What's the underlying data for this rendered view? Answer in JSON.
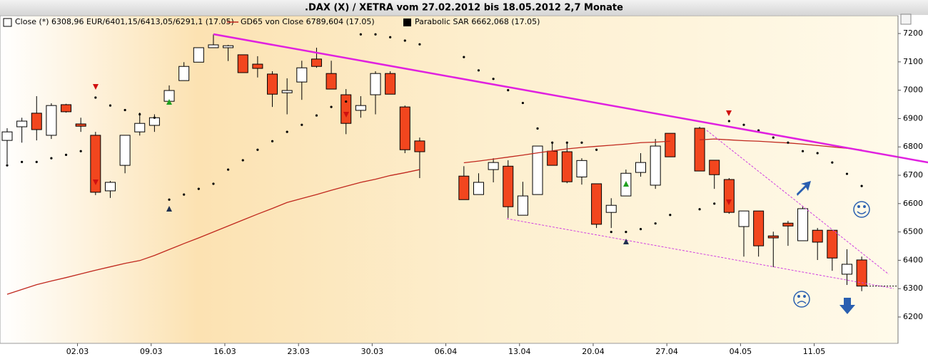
{
  "chart_data": {
    "type": "candlestick",
    "title": ".DAX (X) / XETRA vom 27.02.2012 bis 18.05.2012 2,7 Monate",
    "categories": [
      null,
      null,
      null,
      null,
      "02.03",
      null,
      null,
      null,
      null,
      "09.03",
      null,
      null,
      null,
      null,
      "16.03",
      null,
      null,
      null,
      null,
      "23.03",
      null,
      null,
      null,
      null,
      "30.03",
      null,
      null,
      null,
      null,
      "06.04",
      null,
      null,
      null,
      null,
      "13.04",
      null,
      null,
      null,
      null,
      "20.04",
      null,
      null,
      null,
      null,
      "27.04",
      null,
      null,
      null,
      null,
      "04.05",
      null,
      null,
      null,
      null,
      "11.05",
      null,
      null,
      null,
      null
    ],
    "ylim": [
      6107,
      7263
    ],
    "yticks": [
      6200,
      6300,
      6400,
      6500,
      6600,
      6700,
      6800,
      6900,
      7000,
      7100,
      7200
    ],
    "series": [
      {
        "type": "candlestick",
        "name": "Close (*) 6308,96 EUR/6401,15/6413,05/6291,1 (17.05)",
        "up_color": "#ffffff",
        "down_color": "#f2461e",
        "open": [
          6823,
          6871,
          6919,
          6841,
          6949,
          6881,
          6841,
          6645,
          6735,
          6853,
          6876,
          6961,
          7034,
          7099,
          7150,
          7150,
          7125,
          7092,
          7057,
          6991,
          7029,
          7110,
          7059,
          6984,
          6929,
          6984,
          7059,
          6941,
          6821,
          null,
          null,
          6697,
          6632,
          6720,
          6732,
          6559,
          6632,
          6785,
          6783,
          6694,
          6670,
          6569,
          6627,
          6710,
          6665,
          6848,
          null,
          6866,
          6753,
          6685,
          6519,
          6574,
          6486,
          6531,
          6469,
          6506,
          6506,
          6351,
          6401.15
        ],
        "high": [
          6866,
          6903,
          6979,
          6954,
          6952,
          6903,
          6853,
          6680,
          6841,
          6921,
          6915,
          7017,
          7099,
          7150,
          7197,
          7160,
          7125,
          7120,
          7067,
          7042,
          7104,
          7150,
          7104,
          7004,
          6979,
          7067,
          7067,
          6946,
          6833,
          null,
          null,
          6732,
          6707,
          6760,
          6753,
          6677,
          6803,
          6815,
          6815,
          6760,
          6670,
          6619,
          6720,
          6778,
          6828,
          6848,
          null,
          6871,
          6753,
          6690,
          6574,
          6574,
          6501,
          6539,
          6589,
          6514,
          6506,
          6439,
          6413.05
        ],
        "low": [
          6740,
          6815,
          6823,
          6828,
          6921,
          6853,
          6630,
          6620,
          6707,
          6840,
          6853,
          6950,
          7034,
          7099,
          7150,
          7103,
          7062,
          7045,
          6941,
          6915,
          6966,
          7079,
          7004,
          6845,
          6903,
          6915,
          6986,
          6778,
          6690,
          null,
          null,
          6614,
          6632,
          6675,
          6549,
          6559,
          6632,
          6735,
          6672,
          6667,
          6514,
          6514,
          6627,
          6695,
          6652,
          6765,
          null,
          6715,
          6652,
          6564,
          6413,
          6413,
          6376,
          6451,
          6469,
          6401,
          6363,
          6313,
          6291.1
        ],
        "close": [
          6853,
          6891,
          6861,
          6946,
          6924,
          6873,
          6640,
          6675,
          6841,
          6883,
          6903,
          6999,
          7084,
          7150,
          7160,
          7157,
          7062,
          7077,
          6986,
          6999,
          7079,
          7084,
          7004,
          6883,
          6946,
          7059,
          6986,
          6790,
          6783,
          null,
          null,
          6614,
          6675,
          6745,
          6589,
          6627,
          6803,
          6735,
          6677,
          6752,
          6527,
          6594,
          6707,
          6745,
          6803,
          6765,
          null,
          6715,
          6702,
          6569,
          6574,
          6451,
          6479,
          6521,
          6582,
          6464,
          6408,
          6386,
          6308.96
        ]
      },
      {
        "type": "line",
        "name": "GD65 von Close 6789,604 (17.05)",
        "color": "#c0281e",
        "values": [
          6280,
          6297,
          6314,
          6327,
          6339,
          6352,
          6365,
          6377,
          6389,
          6399,
          6417,
          6438,
          6459,
          6479,
          6500,
          6521,
          6542,
          6563,
          6583,
          6604,
          6618,
          6632,
          6647,
          6661,
          6675,
          6686,
          6699,
          6709,
          6720,
          null,
          null,
          6744,
          6750,
          6757,
          6764,
          6771,
          6779,
          6786,
          6793,
          6798,
          6802,
          6806,
          6810,
          6815,
          6817,
          6820,
          null,
          6825,
          6828,
          6825,
          6822,
          6820,
          6817,
          6814,
          6810,
          6805,
          6800,
          6795,
          6789.604
        ]
      },
      {
        "type": "scatter",
        "name": "Parabolic SAR 6662,068 (17.05)",
        "color": "#000000",
        "values": [
          6735,
          6747,
          6747,
          6760,
          6772,
          6785,
          6974,
          6946,
          6930,
          6915,
          6903,
          6614,
          6632,
          6652,
          6670,
          6720,
          6753,
          6790,
          6820,
          6853,
          6878,
          6911,
          6941,
          6960,
          7197,
          7197,
          7187,
          7175,
          7162,
          null,
          null,
          7117,
          7070,
          7040,
          7000,
          6955,
          6865,
          6815,
          6815,
          6815,
          6790,
          6500,
          6500,
          6510,
          6530,
          6560,
          null,
          6580,
          6600,
          6891,
          6878,
          6858,
          6833,
          6815,
          6785,
          6778,
          6745,
          6705,
          6662.068
        ]
      }
    ]
  }
}
